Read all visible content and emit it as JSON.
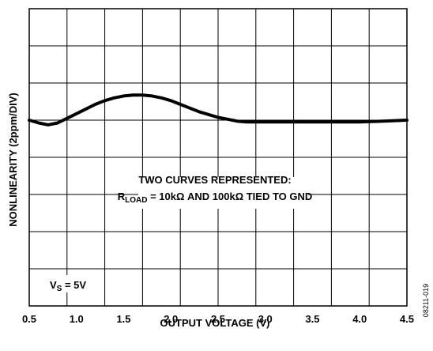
{
  "chart_data": {
    "type": "line",
    "title": "",
    "xlabel": "OUTPUT VOLTAGE (V)",
    "ylabel": "NONLINEARITY (2ppm/DIV)",
    "xlim": [
      0.5,
      4.5
    ],
    "ylim": [
      -10,
      6
    ],
    "grid": true,
    "x_ticks": [
      "0.5",
      "1.0",
      "1.5",
      "2.0",
      "2.5",
      "3.0",
      "3.5",
      "4.0",
      "4.5"
    ],
    "series": [
      {
        "x": [
          0.5,
          0.6,
          0.7,
          0.8,
          0.9,
          1.0,
          1.1,
          1.2,
          1.3,
          1.4,
          1.5,
          1.6,
          1.7,
          1.8,
          1.9,
          2.0,
          2.1,
          2.2,
          2.3,
          2.4,
          2.5,
          2.6,
          2.7,
          2.8,
          2.9,
          3.0,
          3.25,
          3.5,
          3.75,
          4.0,
          4.25,
          4.5
        ],
        "values": [
          0.0,
          -0.15,
          -0.25,
          -0.15,
          0.1,
          0.35,
          0.6,
          0.85,
          1.05,
          1.2,
          1.3,
          1.35,
          1.35,
          1.3,
          1.2,
          1.05,
          0.85,
          0.65,
          0.45,
          0.3,
          0.15,
          0.05,
          -0.05,
          -0.1,
          -0.1,
          -0.1,
          -0.1,
          -0.1,
          -0.1,
          -0.1,
          -0.05,
          0.0
        ]
      }
    ],
    "annotations": {
      "curves_line1": "TWO CURVES REPRESENTED:",
      "curves_r": "R",
      "curves_sub": "LOAD",
      "curves_rest": " = 10kΩ AND 100kΩ TIED TO GND",
      "vs_v": "V",
      "vs_sub": "S",
      "vs_rest": " = 5V"
    }
  },
  "figure_id": "08211-019"
}
